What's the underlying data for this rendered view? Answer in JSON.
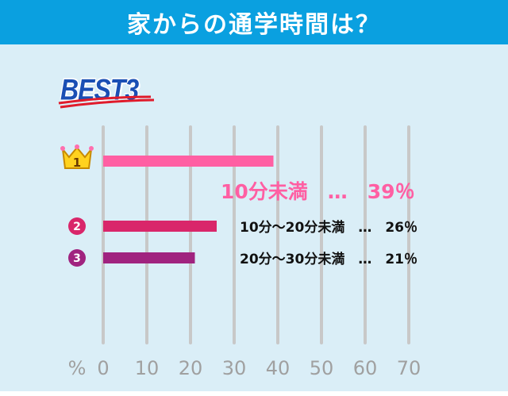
{
  "header": {
    "title": "家からの通学時間は？"
  },
  "badge": {
    "label": "BEST3"
  },
  "colors": {
    "header_bg": "#0aa0e0",
    "panel_bg": "#daeef7",
    "grid": "#c8c8c8",
    "axis_label": "#a0a0a0",
    "rank1": "#ff5fa3",
    "rank2": "#d9266a",
    "rank3": "#a0237f",
    "crown": "#ffd21f",
    "badge_text": "#1a4fb4",
    "badge_underline": "#e01b2b"
  },
  "chart_data": {
    "type": "bar",
    "orientation": "horizontal",
    "title": "家からの通学時間は？",
    "subtitle": "BEST3",
    "xlabel": "%",
    "xlim": [
      0,
      70
    ],
    "xticks": [
      "0",
      "10",
      "20",
      "30",
      "40",
      "50",
      "60",
      "70"
    ],
    "grid": true,
    "rank_icons": [
      "crown-1-icon",
      "circled-2-icon",
      "circled-3-icon"
    ],
    "rank_numbers": [
      "1",
      "2",
      "3"
    ],
    "categories": [
      "10分未満",
      "10分〜20分未満",
      "20分〜30分未満"
    ],
    "values": [
      39,
      26,
      21
    ],
    "data_labels": [
      "10分未満　…　39％",
      "10分〜20分未満　…　26％",
      "20分〜30分未満　…　21％"
    ]
  }
}
